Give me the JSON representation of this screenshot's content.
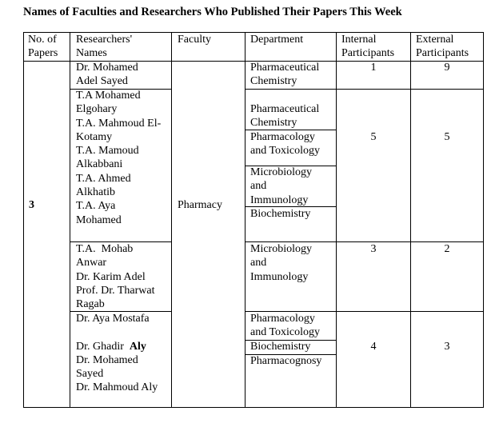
{
  "title": "Names of Faculties and Researchers Who Published Their Papers This Week",
  "headers": {
    "papers": "No. of\nPapers",
    "names": "Researchers'\nNames",
    "faculty": "Faculty",
    "department": "Department",
    "internal": "Internal\nParticipants",
    "external": "External\nParticipants"
  },
  "no_of_papers": "3",
  "faculty": "Pharmacy",
  "groups": [
    {
      "names": "Dr. Mohamed\nAdel Sayed",
      "departments": [
        "Pharmaceutical\nChemistry"
      ],
      "internal": "1",
      "external": "9"
    },
    {
      "names": "T.A Mohamed\nElgohary\nT.A. Mahmoud El-\nKotamy\nT.A. Mamoud\nAlkabbani\nT.A. Ahmed\nAlkhatib\nT.A. Aya\nMohamed",
      "departments": [
        "Pharmaceutical\nChemistry",
        "Pharmacology\nand Toxicology",
        "Microbiology\nand\nImmunology",
        "Biochemistry"
      ],
      "internal": "5",
      "external": "5"
    },
    {
      "names": "T.A.  Mohab\nAnwar\nDr. Karim Adel\nProf. Dr. Tharwat\nRagab",
      "departments": [
        "Microbiology\nand\nImmunology"
      ],
      "internal": "3",
      "external": "2"
    },
    {
      "names_a": "Dr. Aya Mostafa\n\nDr. Ghadir  ",
      "names_bold": "Aly",
      "names_b": "Dr. Mohamed\nSayed\nDr. Mahmoud Aly",
      "departments": [
        "Pharmacology\nand Toxicology",
        "Biochemistry",
        "Pharmacognosy"
      ],
      "internal": "4",
      "external": "3"
    }
  ]
}
